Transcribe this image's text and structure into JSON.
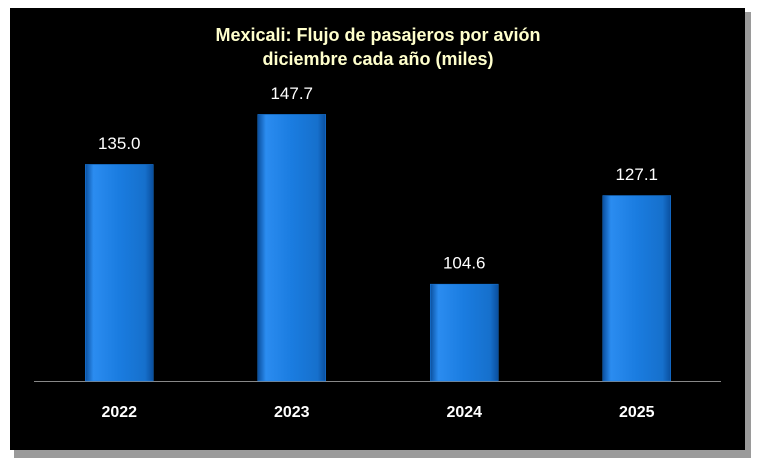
{
  "chart_data": {
    "type": "bar",
    "title": [
      "Mexicali: Flujo de pasajeros por avión",
      "diciembre  cada año (miles)"
    ],
    "categories": [
      "2022",
      "2023",
      "2024",
      "2025"
    ],
    "values": [
      135.0,
      147.7,
      104.6,
      127.1
    ],
    "value_labels": [
      "135.0",
      "147.7",
      "104.6",
      "127.1"
    ],
    "color": "#1a7ce0",
    "ylim": [
      80,
      160
    ]
  }
}
